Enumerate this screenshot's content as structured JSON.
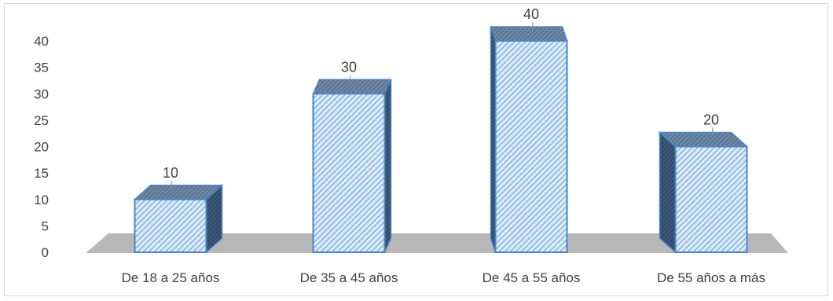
{
  "chart_data": {
    "type": "bar",
    "categories": [
      "De 18 a 25 años",
      "De 35 a 45 años",
      "De 45 a 55 años",
      "De 55 años a más"
    ],
    "values": [
      10,
      30,
      40,
      20
    ],
    "data_labels": [
      "10",
      "30",
      "40",
      "20"
    ],
    "yticks": [
      "0",
      "5",
      "10",
      "15",
      "20",
      "25",
      "30",
      "35",
      "40"
    ],
    "ylim": [
      0,
      40
    ],
    "grid": false,
    "legend": "none",
    "style": "3d-columns-with-diagonal-hatch"
  },
  "colors": {
    "bar_face": "#dbeaf8",
    "bar_hatch": "#5b9bd5",
    "bar_edge": "#4a86c5",
    "bar_top": "#5f7a96",
    "bar_side": "#2e4a66",
    "floor": "#b8b8b8",
    "text": "#404040",
    "frame": "#d9d9d9"
  }
}
